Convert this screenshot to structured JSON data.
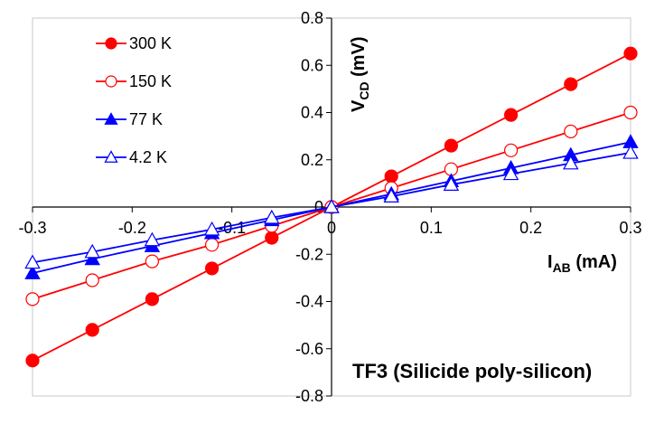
{
  "chart_data": {
    "type": "scatter",
    "title": "",
    "annotation": "TF3 (Silicide poly-silicon)",
    "xlabel": {
      "main": "I",
      "sub": "AB",
      "unit": " (mA)"
    },
    "ylabel": {
      "main": "V",
      "sub": "CD",
      "unit": " (mV)"
    },
    "xlim": [
      -0.3,
      0.3
    ],
    "ylim": [
      -0.8,
      0.8
    ],
    "x_ticks": [
      "-0.3",
      "-0.2",
      "-0.1",
      "0",
      "0.1",
      "0.2",
      "0.3"
    ],
    "x_tick_values": [
      -0.3,
      -0.2,
      -0.1,
      0,
      0.1,
      0.2,
      0.3
    ],
    "y_ticks": [
      "-0.8",
      "-0.6",
      "-0.4",
      "-0.2",
      "0",
      "0.2",
      "0.4",
      "0.6",
      "0.8"
    ],
    "y_tick_values": [
      -0.8,
      -0.6,
      -0.4,
      -0.2,
      0,
      0.2,
      0.4,
      0.6,
      0.8
    ],
    "grid": false,
    "legend_position": "top-left",
    "x": [
      -0.3,
      -0.24,
      -0.18,
      -0.12,
      -0.06,
      0,
      0.06,
      0.12,
      0.18,
      0.24,
      0.3
    ],
    "series": [
      {
        "name": "300 K",
        "color": "#ff0000",
        "marker": "circle",
        "filled": true,
        "values": [
          -0.65,
          -0.52,
          -0.39,
          -0.26,
          -0.13,
          0,
          0.13,
          0.26,
          0.39,
          0.52,
          0.65
        ]
      },
      {
        "name": "150 K",
        "color": "#ff0000",
        "marker": "circle",
        "filled": false,
        "values": [
          -0.39,
          -0.31,
          -0.23,
          -0.16,
          -0.08,
          0,
          0.08,
          0.16,
          0.24,
          0.32,
          0.4
        ]
      },
      {
        "name": "77 K",
        "color": "#0000ff",
        "marker": "triangle",
        "filled": true,
        "values": [
          -0.28,
          -0.22,
          -0.165,
          -0.11,
          -0.055,
          0,
          0.055,
          0.11,
          0.165,
          0.22,
          0.275
        ]
      },
      {
        "name": "4.2 K",
        "color": "#0000ff",
        "marker": "triangle",
        "filled": false,
        "values": [
          -0.235,
          -0.19,
          -0.14,
          -0.095,
          -0.045,
          0,
          0.045,
          0.095,
          0.14,
          0.185,
          0.23
        ]
      }
    ]
  }
}
